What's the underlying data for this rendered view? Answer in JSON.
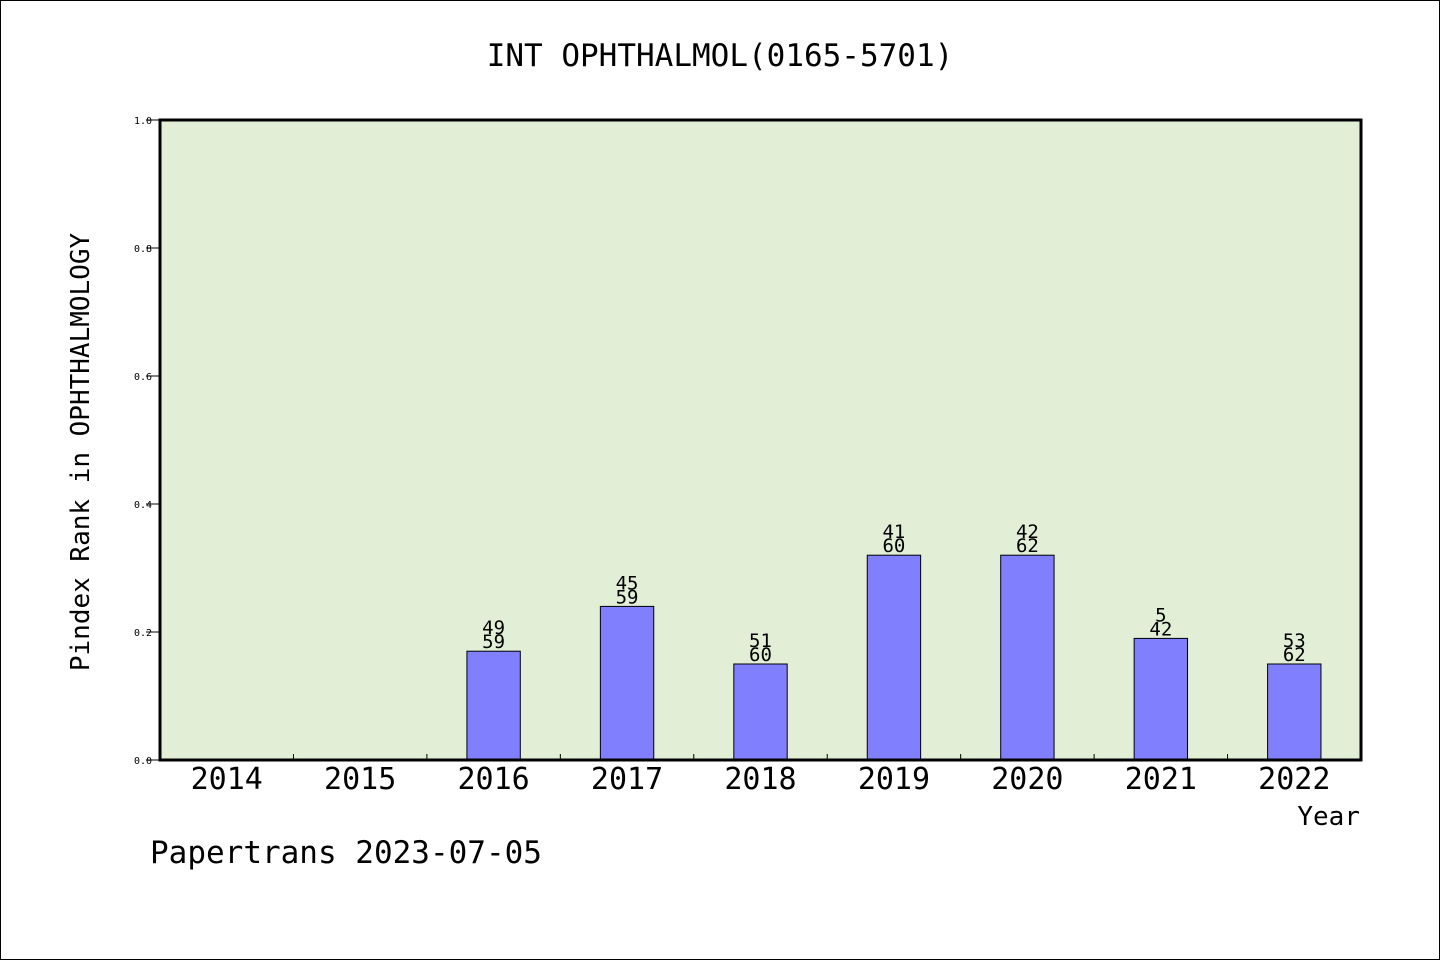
{
  "chart_data": {
    "type": "bar",
    "title": "INT OPHTHALMOL(0165-5701)",
    "xlabel": "Year",
    "ylabel": "Pindex Rank in OPHTHALMOLOGY",
    "ylim": [
      0,
      1.0
    ],
    "yticks": [
      "0.0",
      "0.2",
      "0.4",
      "0.6",
      "0.8",
      "1.0"
    ],
    "grid": false,
    "categories": [
      "2014",
      "2015",
      "2016",
      "2017",
      "2018",
      "2019",
      "2020",
      "2021",
      "2022"
    ],
    "values": [
      null,
      null,
      0.17,
      0.24,
      0.15,
      0.32,
      0.32,
      0.19,
      0.15
    ],
    "rank_labels": [
      null,
      null,
      "49",
      "45",
      "51",
      "41",
      "42",
      "5",
      "53"
    ],
    "total_labels": [
      null,
      null,
      "59",
      "59",
      "60",
      "60",
      "62",
      "42",
      "62"
    ]
  },
  "footer": "Papertrans 2023-07-05",
  "colors": {
    "plot_background": "#e2efd6",
    "bar_fill": "#8080ff",
    "bar_stroke": "#000000",
    "axis": "#000000"
  }
}
